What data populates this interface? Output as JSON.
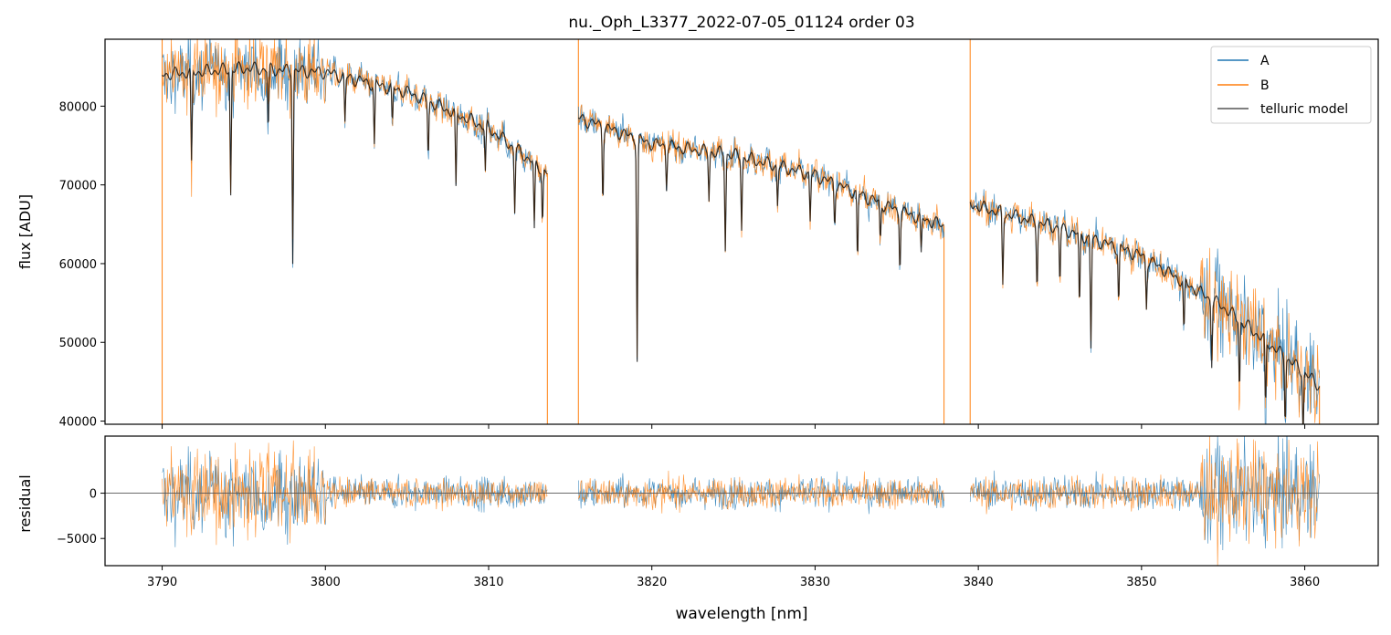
{
  "chart_data": [
    {
      "panel": "flux",
      "type": "line",
      "title": "nu._Oph_L3377_2022-07-05_01124  order 03",
      "xlabel": "",
      "ylabel": "flux [ADU]",
      "xlim": [
        3786.5,
        3864.5
      ],
      "ylim": [
        39600,
        88500
      ],
      "yticks": [
        40000,
        50000,
        60000,
        70000,
        80000
      ],
      "ytick_labels": [
        "40000",
        "50000",
        "60000",
        "70000",
        "80000"
      ],
      "legend_position": "upper right",
      "legend": [
        "A",
        "B",
        "telluric model"
      ],
      "colors": {
        "A": "#1f77b4",
        "B": "#ff7f0e",
        "model": "#000000"
      },
      "segments": [
        {
          "start": 3790.0,
          "end": 3813.6,
          "continuum": [
            [
              3790.0,
              84000
            ],
            [
              3795.0,
              84800
            ],
            [
              3800.0,
              84300
            ],
            [
              3805.0,
              81800
            ],
            [
              3810.0,
              77200
            ],
            [
              3813.6,
              71500
            ]
          ]
        },
        {
          "start": 3815.5,
          "end": 3837.9,
          "continuum": [
            [
              3815.5,
              78500
            ],
            [
              3820.0,
              75200
            ],
            [
              3825.0,
              73800
            ],
            [
              3830.0,
              71200
            ],
            [
              3835.0,
              66800
            ],
            [
              3837.9,
              64800
            ]
          ]
        },
        {
          "start": 3839.5,
          "end": 3860.9,
          "continuum": [
            [
              3839.5,
              67500
            ],
            [
              3845.0,
              64500
            ],
            [
              3850.0,
              61000
            ],
            [
              3855.0,
              54500
            ],
            [
              3858.0,
              49500
            ],
            [
              3860.9,
              44500
            ]
          ]
        }
      ],
      "absorption_lines": [
        {
          "x": 3791.8,
          "depth": 12000
        },
        {
          "x": 3794.2,
          "depth": 16000
        },
        {
          "x": 3796.5,
          "depth": 8000
        },
        {
          "x": 3798.0,
          "depth": 24000
        },
        {
          "x": 3801.2,
          "depth": 6000
        },
        {
          "x": 3803.0,
          "depth": 8000
        },
        {
          "x": 3804.1,
          "depth": 5000
        },
        {
          "x": 3806.3,
          "depth": 7000
        },
        {
          "x": 3808.0,
          "depth": 10000
        },
        {
          "x": 3809.8,
          "depth": 6000
        },
        {
          "x": 3811.6,
          "depth": 8000
        },
        {
          "x": 3812.8,
          "depth": 9000
        },
        {
          "x": 3813.3,
          "depth": 7000
        },
        {
          "x": 3817.0,
          "depth": 9000
        },
        {
          "x": 3819.1,
          "depth": 28000
        },
        {
          "x": 3820.9,
          "depth": 5000
        },
        {
          "x": 3823.5,
          "depth": 6000
        },
        {
          "x": 3824.5,
          "depth": 12000
        },
        {
          "x": 3825.5,
          "depth": 9000
        },
        {
          "x": 3827.7,
          "depth": 5000
        },
        {
          "x": 3829.7,
          "depth": 6000
        },
        {
          "x": 3831.2,
          "depth": 5000
        },
        {
          "x": 3832.6,
          "depth": 9000
        },
        {
          "x": 3834.0,
          "depth": 5000
        },
        {
          "x": 3835.2,
          "depth": 7000
        },
        {
          "x": 3836.5,
          "depth": 5000
        },
        {
          "x": 3841.5,
          "depth": 9000
        },
        {
          "x": 3843.6,
          "depth": 8000
        },
        {
          "x": 3845.0,
          "depth": 7000
        },
        {
          "x": 3846.2,
          "depth": 10000
        },
        {
          "x": 3846.9,
          "depth": 14000
        },
        {
          "x": 3848.6,
          "depth": 7000
        },
        {
          "x": 3850.3,
          "depth": 6000
        },
        {
          "x": 3852.6,
          "depth": 7000
        },
        {
          "x": 3854.3,
          "depth": 8000
        },
        {
          "x": 3856.0,
          "depth": 9000
        },
        {
          "x": 3857.6,
          "depth": 9000
        },
        {
          "x": 3858.8,
          "depth": 8000
        },
        {
          "x": 3859.9,
          "depth": 8000
        }
      ]
    },
    {
      "panel": "residual",
      "type": "line",
      "xlabel": "wavelength [nm]",
      "ylabel": "residual",
      "xlim": [
        3786.5,
        3864.5
      ],
      "ylim": [
        -8000,
        6300
      ],
      "yticks": [
        -5000,
        0
      ],
      "ytick_labels": [
        "−5000",
        "0"
      ],
      "xticks": [
        3790,
        3800,
        3810,
        3820,
        3830,
        3840,
        3850,
        3860
      ],
      "xtick_labels": [
        "3790",
        "3800",
        "3810",
        "3820",
        "3830",
        "3840",
        "3850",
        "3860"
      ],
      "zero_line": 0,
      "noise_envelope": [
        {
          "start": 3790.0,
          "end": 3800.0,
          "sigma": 3200
        },
        {
          "start": 3800.0,
          "end": 3813.6,
          "sigma": 1200
        },
        {
          "start": 3815.5,
          "end": 3837.9,
          "sigma": 1200
        },
        {
          "start": 3839.5,
          "end": 3853.5,
          "sigma": 1300
        },
        {
          "start": 3853.5,
          "end": 3860.9,
          "sigma": 3800
        }
      ]
    }
  ]
}
